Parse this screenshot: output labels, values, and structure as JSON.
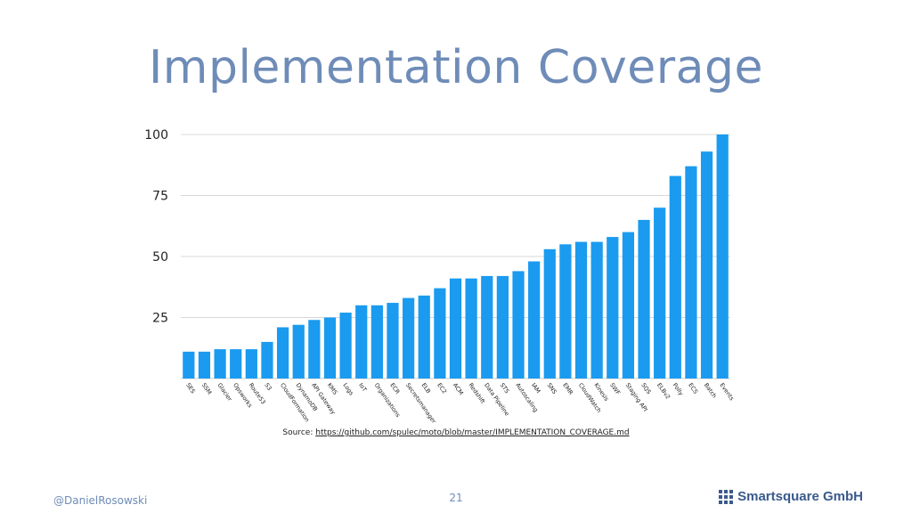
{
  "slide": {
    "title": "Implementation Coverage",
    "source_prefix": "Source: ",
    "source_link": "https://github.com/spulec/moto/blob/master/IMPLEMENTATION_COVERAGE.md",
    "author": "@DanielRosowski",
    "page_number": "21",
    "brand": "Smartsquare GmbH",
    "brand_icon": "grid-squares-logo-icon"
  },
  "chart_data": {
    "type": "bar",
    "title": "",
    "xlabel": "",
    "ylabel": "",
    "ylim": [
      0,
      100
    ],
    "yticks": [
      "25",
      "50",
      "75",
      "100"
    ],
    "grid": true,
    "bar_color": "#1a9bef",
    "categories": [
      "SES",
      "SSM",
      "Glacier",
      "Opsworks",
      "Route53",
      "S3",
      "CloudFormation",
      "DynamoDB",
      "API Gateway",
      "KMS",
      "Logs",
      "IoT",
      "Organizations",
      "ECR",
      "Secretsmanager",
      "ELB",
      "EC2",
      "ACM",
      "Redshift",
      "Data Pipeline",
      "STS",
      "Autoscaling",
      "IAM",
      "SNS",
      "EMR",
      "CloudWatch",
      "Kinesis",
      "SWF",
      "Staging API",
      "SQS",
      "ELBv2",
      "Polly",
      "ECS",
      "Batch",
      "Events"
    ],
    "values": [
      11,
      11,
      12,
      12,
      12,
      15,
      21,
      22,
      24,
      25,
      27,
      30,
      30,
      31,
      33,
      34,
      37,
      41,
      41,
      42,
      42,
      44,
      48,
      53,
      55,
      56,
      56,
      58,
      60,
      65,
      70,
      83,
      87,
      93,
      100
    ]
  }
}
